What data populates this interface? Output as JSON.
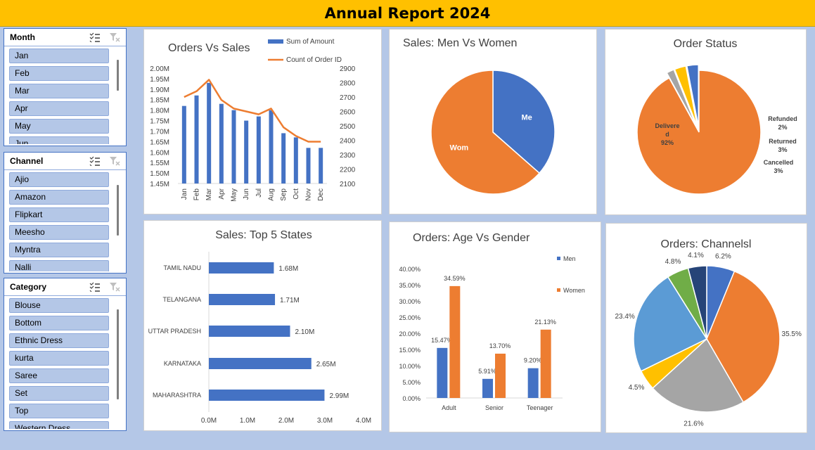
{
  "report_title": "Annual Report 2024",
  "slicers": [
    {
      "title": "Month",
      "items": [
        "Jan",
        "Feb",
        "Mar",
        "Apr",
        "May",
        "Jun"
      ]
    },
    {
      "title": "Channel",
      "items": [
        "Ajio",
        "Amazon",
        "Flipkart",
        "Meesho",
        "Myntra",
        "Nalli"
      ]
    },
    {
      "title": "Category",
      "items": [
        "Blouse",
        "Bottom",
        "Ethnic Dress",
        "kurta",
        "Saree",
        "Set",
        "Top",
        "Western Dress"
      ]
    }
  ],
  "colors": {
    "blue": "#4472c4",
    "orange": "#ed7d31",
    "gray": "#a5a5a5",
    "yellow": "#ffc000",
    "lightblue": "#5b9bd5",
    "green": "#70ad47",
    "navy": "#264478"
  },
  "chart_data": [
    {
      "id": "orders_vs_sales",
      "type": "bar",
      "title": "Orders Vs Sales",
      "categories": [
        "Jan",
        "Feb",
        "Mar",
        "Apr",
        "May",
        "Jun",
        "Jul",
        "Aug",
        "Sep",
        "Oct",
        "Nov",
        "Dec"
      ],
      "series": [
        {
          "name": "Sum of Amount",
          "type": "bar",
          "axis": "left",
          "values": [
            1.82,
            1.87,
            1.93,
            1.83,
            1.8,
            1.75,
            1.77,
            1.8,
            1.69,
            1.67,
            1.62,
            1.62
          ]
        },
        {
          "name": "Count of Order ID",
          "type": "line",
          "axis": "right",
          "values": [
            2700,
            2740,
            2820,
            2680,
            2620,
            2600,
            2580,
            2620,
            2490,
            2430,
            2390,
            2390
          ]
        }
      ],
      "left_ticks": [
        "1.45M",
        "1.50M",
        "1.55M",
        "1.60M",
        "1.65M",
        "1.70M",
        "1.75M",
        "1.80M",
        "1.85M",
        "1.90M",
        "1.95M",
        "2.00M"
      ],
      "right_ticks": [
        "2100",
        "2200",
        "2300",
        "2400",
        "2500",
        "2600",
        "2700",
        "2800",
        "2900"
      ],
      "ylim_left": [
        1.45,
        2.0
      ],
      "ylim_right": [
        2100,
        2900
      ]
    },
    {
      "id": "sales_men_women",
      "type": "pie",
      "title": "Sales: Men Vs Women",
      "slices": [
        {
          "label": "Me",
          "value": 36.5,
          "color": "#4472c4"
        },
        {
          "label": "Wom",
          "value": 63.5,
          "color": "#ed7d31"
        }
      ]
    },
    {
      "id": "order_status",
      "type": "pie",
      "title": "Order Status",
      "slices": [
        {
          "label": "Delivere\nd",
          "value": 92,
          "pct": "92%",
          "color": "#ed7d31"
        },
        {
          "label": "Refunded",
          "value": 2,
          "pct": "2%",
          "color": "#a5a5a5"
        },
        {
          "label": "Returned",
          "value": 3,
          "pct": "3%",
          "color": "#ffc000"
        },
        {
          "label": "Cancelled",
          "value": 3,
          "pct": "3%",
          "color": "#4472c4"
        }
      ]
    },
    {
      "id": "top_states",
      "type": "bar",
      "orientation": "horizontal",
      "title": "Sales: Top 5 States",
      "categories": [
        "TAMIL NADU",
        "TELANGANA",
        "UTTAR PRADESH",
        "KARNATAKA",
        "MAHARASHTRA"
      ],
      "values": [
        1.68,
        1.71,
        2.1,
        2.65,
        2.99
      ],
      "value_labels": [
        "1.68M",
        "1.71M",
        "2.10M",
        "2.65M",
        "2.99M"
      ],
      "x_ticks": [
        "0.0M",
        "1.0M",
        "2.0M",
        "3.0M",
        "4.0M"
      ],
      "xlim": [
        0,
        4.0
      ]
    },
    {
      "id": "age_gender",
      "type": "bar",
      "title": "Orders: Age Vs Gender",
      "categories": [
        "Adult",
        "Senior",
        "Teenager"
      ],
      "series": [
        {
          "name": "Men",
          "values": [
            15.47,
            5.91,
            9.2
          ],
          "labels": [
            "15.47%",
            "5.91%",
            "9.20%"
          ]
        },
        {
          "name": "Women",
          "values": [
            34.59,
            13.7,
            21.13
          ],
          "labels": [
            "34.59%",
            "13.70%",
            "21.13%"
          ]
        }
      ],
      "y_ticks": [
        "0.00%",
        "5.00%",
        "10.00%",
        "15.00%",
        "20.00%",
        "25.00%",
        "30.00%",
        "35.00%",
        "40.00%"
      ],
      "ylim": [
        0,
        40
      ]
    },
    {
      "id": "channels",
      "type": "pie",
      "title": "Orders: Channelsl",
      "slices": [
        {
          "value": 6.2,
          "pct": "6.2%",
          "color": "#4472c4"
        },
        {
          "value": 35.5,
          "pct": "35.5%",
          "color": "#ed7d31"
        },
        {
          "value": 21.6,
          "pct": "21.6%",
          "color": "#a5a5a5"
        },
        {
          "value": 4.5,
          "pct": "4.5%",
          "color": "#ffc000"
        },
        {
          "value": 23.4,
          "pct": "23.4%",
          "color": "#5b9bd5"
        },
        {
          "value": 4.8,
          "pct": "4.8%",
          "color": "#70ad47"
        },
        {
          "value": 4.1,
          "pct": "4.1%",
          "color": "#264478"
        }
      ]
    }
  ]
}
